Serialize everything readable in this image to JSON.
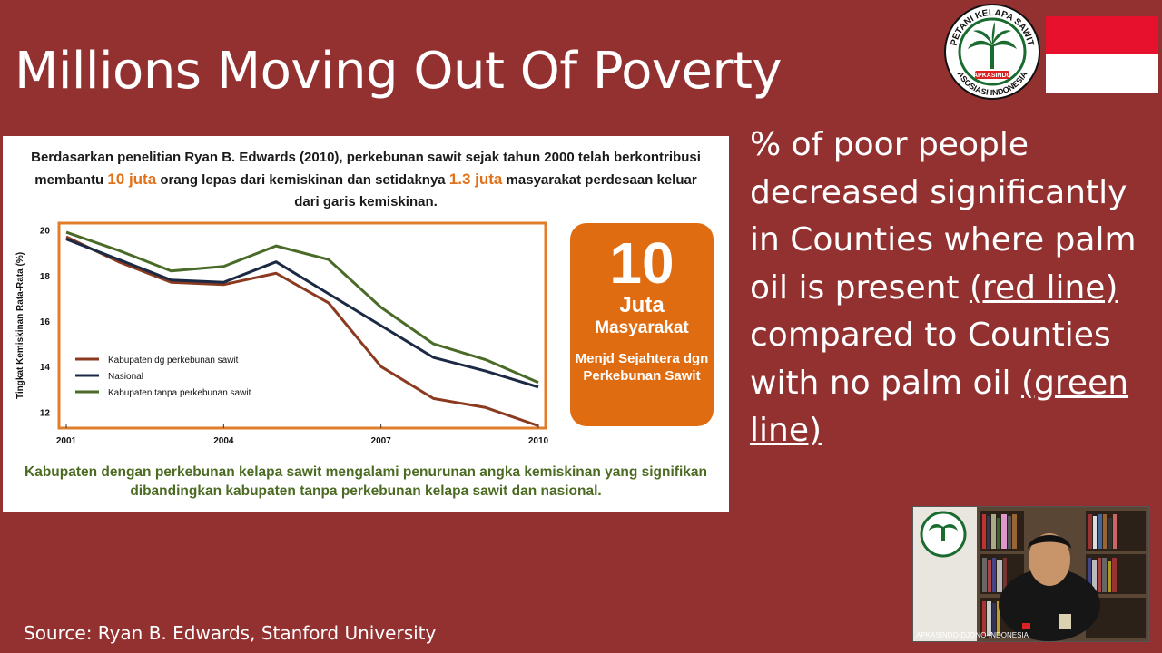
{
  "slide": {
    "title": "Millions Moving Out Of Poverty",
    "source": "Source: Ryan B. Edwards, Stanford University"
  },
  "logo": {
    "top_text": "PETANI KELAPA SAWIT",
    "bottom_text": "ASOSIASI INDONESIA",
    "name": "APKASINDO"
  },
  "panel": {
    "intro": {
      "part1": "Berdasarkan penelitian Ryan B. Edwards (2010), perkebunan sawit sejak tahun 2000 telah berkontribusi membantu ",
      "hl1": "10 juta",
      "part2": " orang lepas dari kemiskinan dan setidaknya ",
      "hl2": "1.3 juta",
      "part3": " masyarakat perdesaan keluar dari garis kemiskinan."
    },
    "badge": {
      "number": "10",
      "unit": "Juta",
      "group": "Masyarakat",
      "sub": "Menjd Sejahtera dgn Perkebunan Sawit"
    },
    "caption": "Kabupaten dengan perkebunan kelapa sawit mengalami penurunan angka kemiskinan yang signifikan dibandingkan kabupaten tanpa perkebunan kelapa sawit dan nasional."
  },
  "chart_data": {
    "type": "line",
    "title": "",
    "xlabel": "",
    "ylabel": "Tingkat Kemiskinan Rata-Rata (%)",
    "x": [
      2001,
      2002,
      2003,
      2004,
      2005,
      2006,
      2007,
      2008,
      2009,
      2010
    ],
    "xticks": [
      "2001",
      "2004",
      "2007",
      "2010"
    ],
    "yticks": [
      "12",
      "14",
      "16",
      "18",
      "20"
    ],
    "xlim": [
      2001,
      2010
    ],
    "ylim": [
      11.3,
      20.3
    ],
    "grid": false,
    "legend_position": "bottom-left",
    "series": [
      {
        "name": "Kabupaten dg perkebunan sawit",
        "color": "#8b3a1f",
        "values": [
          19.7,
          18.6,
          17.7,
          17.6,
          18.1,
          16.8,
          14.0,
          12.6,
          12.2,
          11.4
        ]
      },
      {
        "name": "Nasional",
        "color": "#1b2a44",
        "values": [
          19.6,
          18.7,
          17.8,
          17.7,
          18.6,
          17.2,
          15.8,
          14.4,
          13.8,
          13.1
        ]
      },
      {
        "name": "Kabupaten tanpa perkebunan sawit",
        "color": "#4a6b28",
        "values": [
          19.9,
          19.1,
          18.2,
          18.4,
          19.3,
          18.7,
          16.6,
          15.0,
          14.3,
          13.3
        ]
      }
    ]
  },
  "side_text": {
    "part1": "% of poor people decreased significantly in Counties where palm oil is present ",
    "ul1": "(red line)",
    "part2": " compared to Counties with no palm oil ",
    "ul2": "(green line)"
  },
  "video": {
    "label": "APKASINDO-DJONO-INDONESIA"
  },
  "colors": {
    "background": "#933131",
    "accent": "#e06c11",
    "caption": "#4c6b22"
  }
}
